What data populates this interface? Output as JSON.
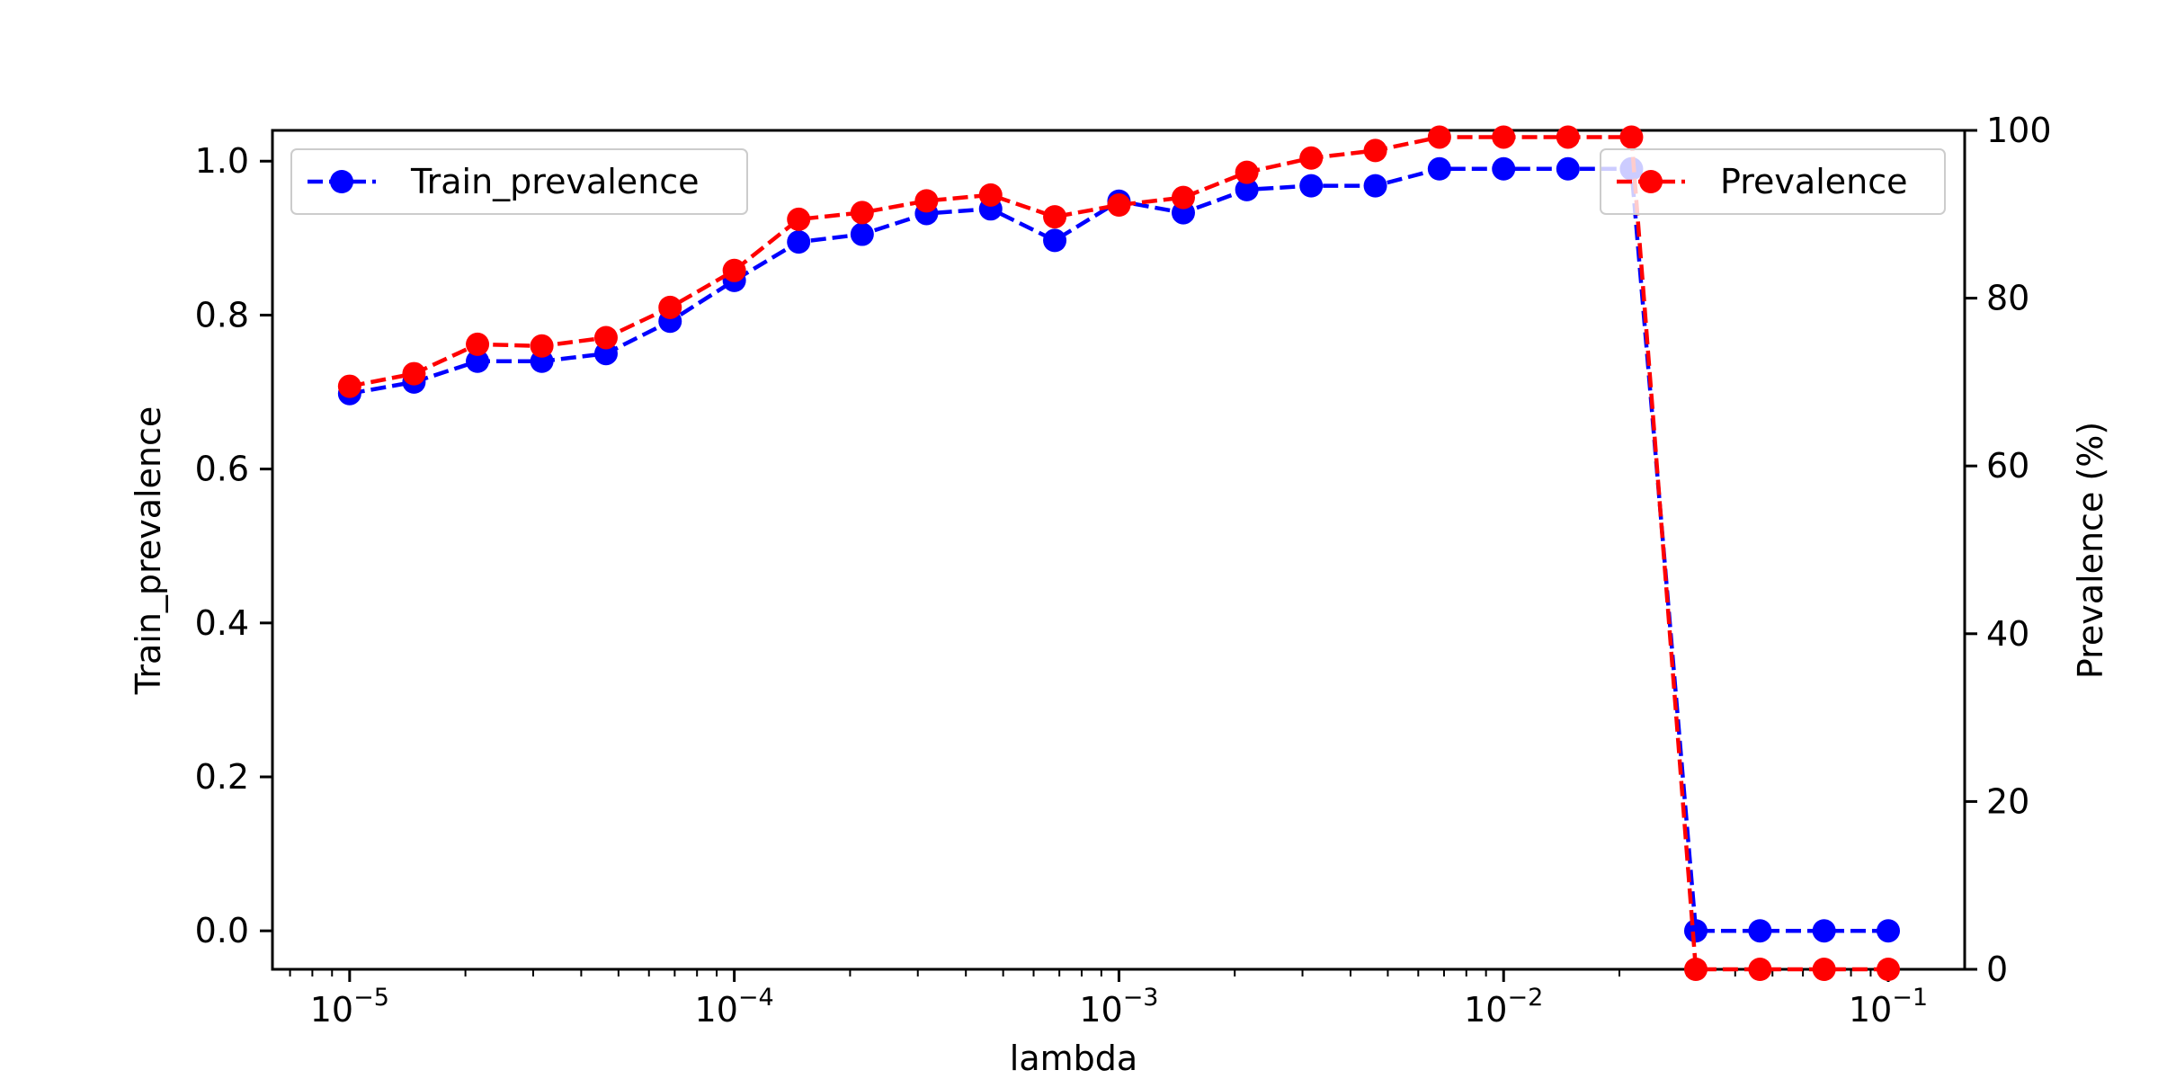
{
  "chart_data": {
    "type": "line",
    "xlabel": "lambda",
    "ylabel_left": "Train_prevalence",
    "ylabel_right": "Prevalence (%)",
    "x_scale": "log",
    "xlim": [
      6.3e-06,
      0.158
    ],
    "ylim_left": [
      -0.05,
      1.04
    ],
    "ylim_right": [
      0,
      100
    ],
    "x_ticks": [
      {
        "value": 1e-05,
        "base": "10",
        "exp": "−5"
      },
      {
        "value": 0.0001,
        "base": "10",
        "exp": "−4"
      },
      {
        "value": 0.001,
        "base": "10",
        "exp": "−3"
      },
      {
        "value": 0.01,
        "base": "10",
        "exp": "−2"
      },
      {
        "value": 0.1,
        "base": "10",
        "exp": "−1"
      }
    ],
    "y_ticks_left": [
      "0.0",
      "0.2",
      "0.4",
      "0.6",
      "0.8",
      "1.0"
    ],
    "y_ticks_right": [
      "0",
      "20",
      "40",
      "60",
      "80",
      "100"
    ],
    "x": [
      1e-05,
      1.47e-05,
      2.15e-05,
      3.16e-05,
      4.64e-05,
      6.81e-05,
      0.0001,
      0.000147,
      0.000215,
      0.000316,
      0.000464,
      0.000681,
      0.001,
      0.00147,
      0.00215,
      0.00316,
      0.00464,
      0.00681,
      0.01,
      0.0147,
      0.0215,
      0.0316,
      0.0464,
      0.0681,
      0.1
    ],
    "series": [
      {
        "name": "Train_prevalence",
        "axis": "left",
        "color": "#0000ff",
        "values": [
          0.698,
          0.713,
          0.74,
          0.74,
          0.75,
          0.792,
          0.845,
          0.895,
          0.905,
          0.932,
          0.938,
          0.897,
          0.948,
          0.933,
          0.963,
          0.968,
          0.968,
          0.99,
          0.99,
          0.99,
          0.99,
          0.0,
          0.0,
          0.0,
          0.0
        ]
      },
      {
        "name": "Prevalence",
        "axis": "right",
        "color": "#ff0000",
        "values": [
          69.5,
          71.0,
          74.5,
          74.3,
          75.3,
          78.9,
          83.3,
          89.4,
          90.2,
          91.6,
          92.3,
          89.7,
          91.1,
          92.0,
          95.0,
          96.7,
          97.6,
          99.2,
          99.2,
          99.2,
          99.2,
          0.0,
          0.0,
          0.0,
          0.0
        ]
      }
    ],
    "legend_left": {
      "label": "Train_prevalence",
      "placement": "upper-left"
    },
    "legend_right": {
      "label": "Prevalence",
      "placement": "upper-right"
    }
  }
}
